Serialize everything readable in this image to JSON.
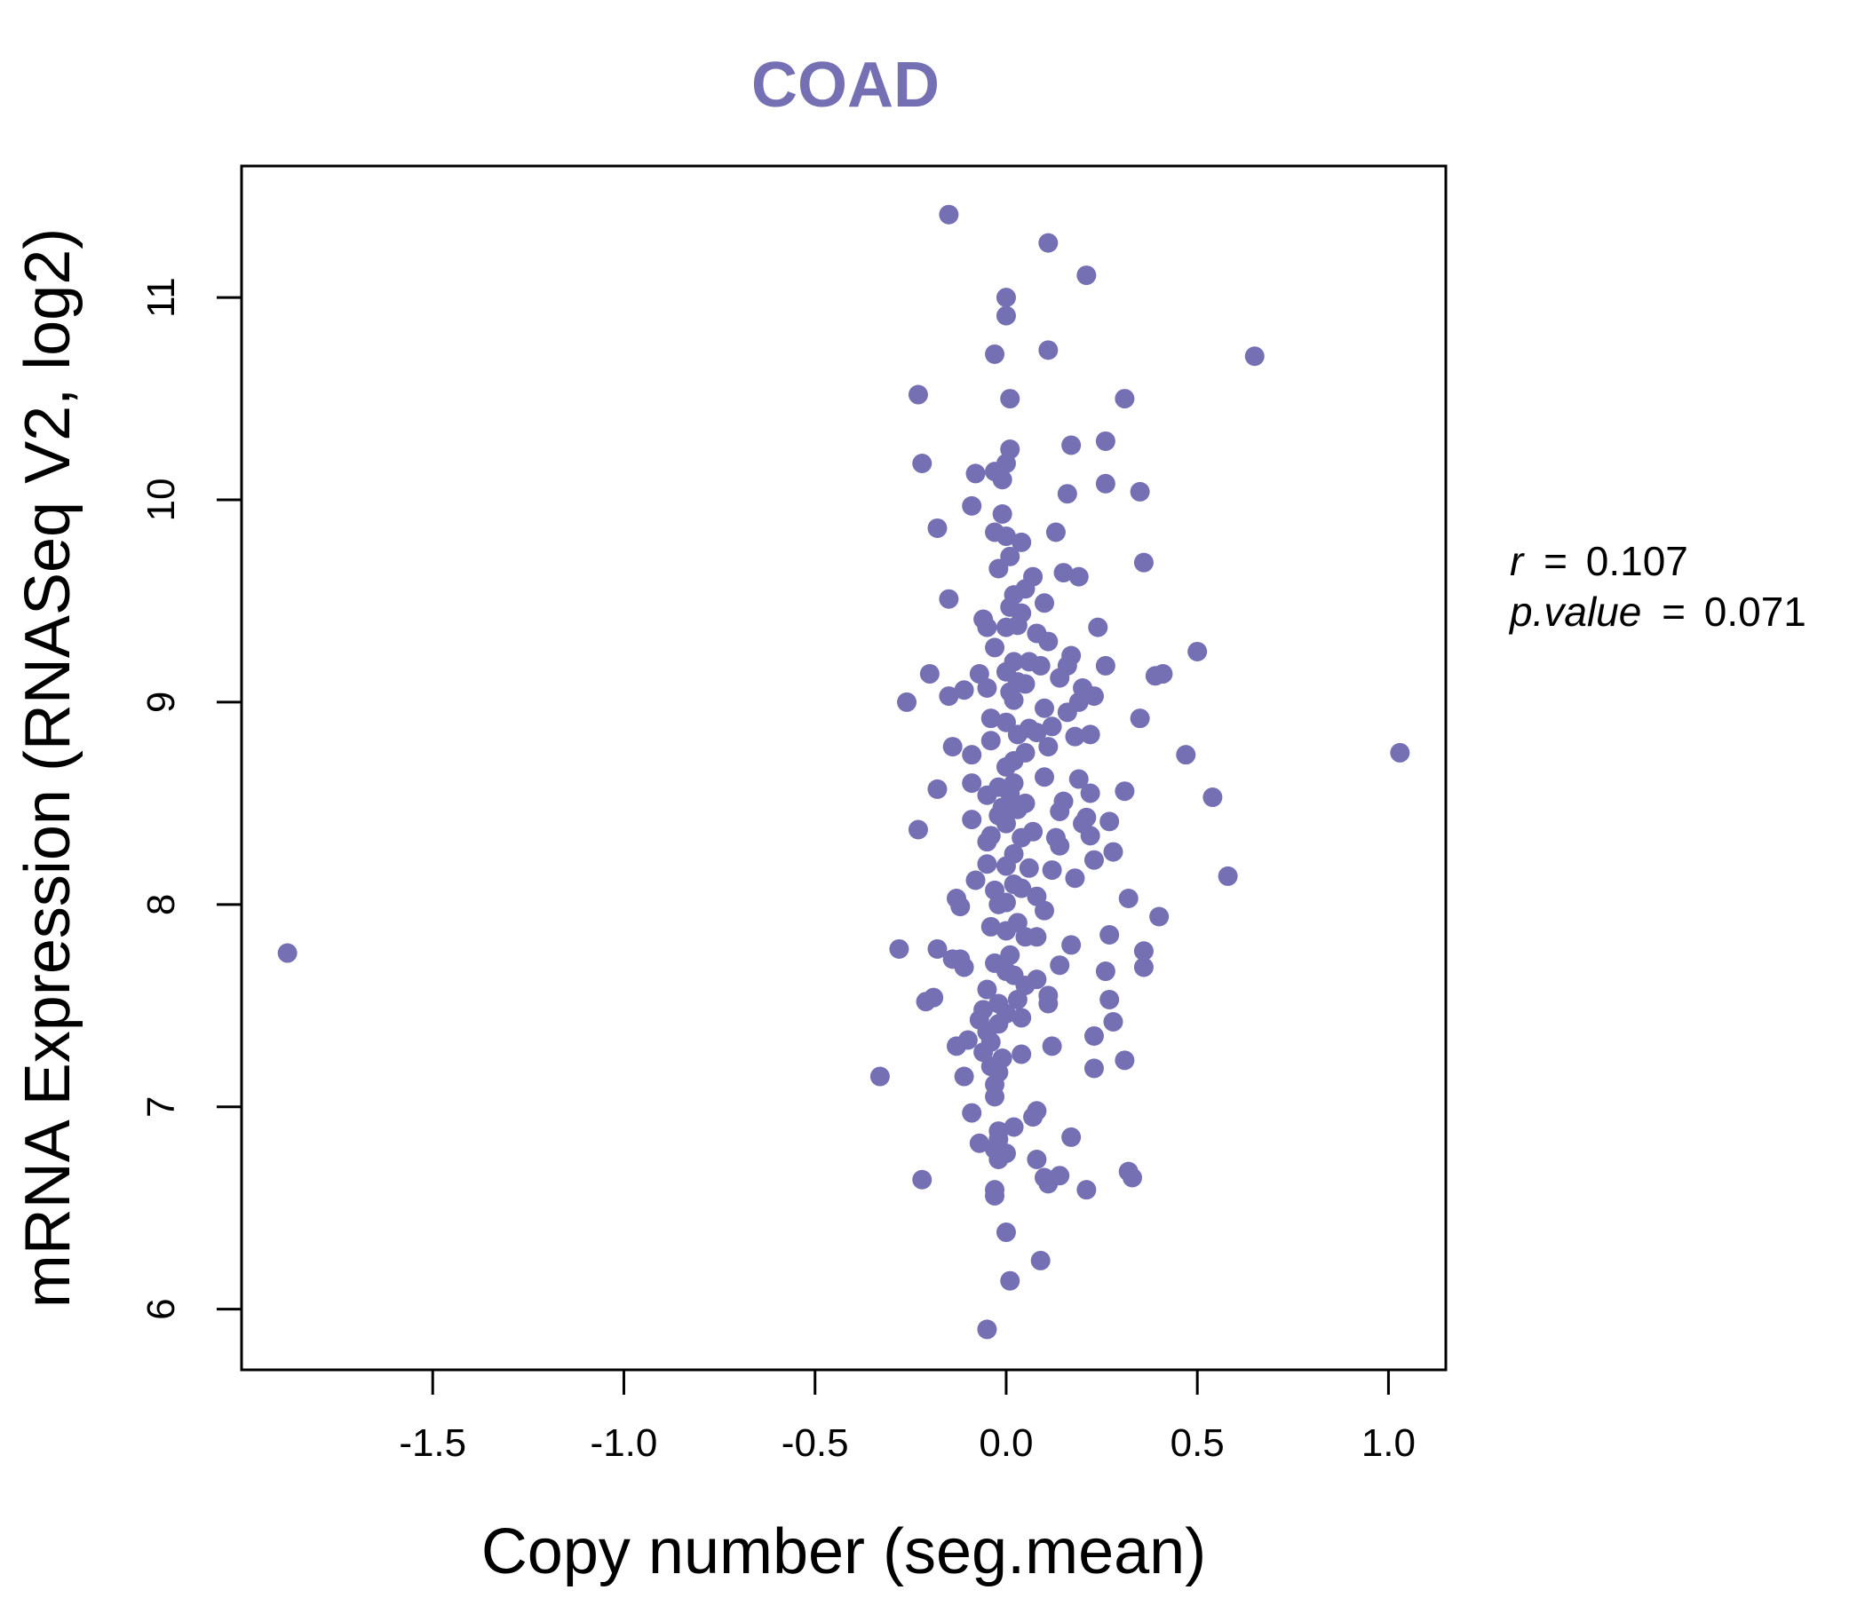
{
  "chart_data": {
    "type": "scatter",
    "title": "COAD",
    "xlabel": "Copy number (seg.mean)",
    "ylabel": "mRNA Expression (RNASeq V2, log2)",
    "xlim": [
      -2.0,
      1.15
    ],
    "ylim": [
      5.7,
      11.65
    ],
    "xticks": [
      -1.5,
      -1.0,
      -0.5,
      0.0,
      0.5,
      1.0
    ],
    "xtick_labels": [
      "-1.5",
      "-1.0",
      "-0.5",
      "0.0",
      "0.5",
      "1.0"
    ],
    "yticks": [
      6,
      7,
      8,
      9,
      10,
      11
    ],
    "ytick_labels": [
      "6",
      "7",
      "8",
      "9",
      "10",
      "11"
    ],
    "color": "#7570b3",
    "stats": {
      "r_label": "r",
      "r_value": "0.107",
      "p_label": "p.value",
      "p_value": "0.071",
      "equals": "="
    },
    "points": [
      [
        -1.88,
        7.76
      ],
      [
        -0.15,
        11.41
      ],
      [
        0.11,
        11.27
      ],
      [
        0.21,
        11.11
      ],
      [
        0.0,
        11.0
      ],
      [
        0.0,
        10.91
      ],
      [
        -0.03,
        10.72
      ],
      [
        0.11,
        10.74
      ],
      [
        0.65,
        10.71
      ],
      [
        -0.23,
        10.52
      ],
      [
        0.01,
        10.5
      ],
      [
        0.31,
        10.5
      ],
      [
        0.26,
        10.29
      ],
      [
        0.17,
        10.27
      ],
      [
        0.01,
        10.25
      ],
      [
        -0.22,
        10.18
      ],
      [
        0.0,
        10.18
      ],
      [
        -0.08,
        10.13
      ],
      [
        -0.03,
        10.14
      ],
      [
        -0.01,
        10.1
      ],
      [
        0.26,
        10.08
      ],
      [
        0.35,
        10.04
      ],
      [
        0.16,
        10.03
      ],
      [
        -0.09,
        9.97
      ],
      [
        -0.01,
        9.93
      ],
      [
        -0.18,
        9.86
      ],
      [
        -0.03,
        9.84
      ],
      [
        0.13,
        9.84
      ],
      [
        0.0,
        9.82
      ],
      [
        0.04,
        9.79
      ],
      [
        0.01,
        9.72
      ],
      [
        -0.02,
        9.66
      ],
      [
        0.36,
        9.69
      ],
      [
        0.15,
        9.64
      ],
      [
        0.19,
        9.62
      ],
      [
        0.07,
        9.62
      ],
      [
        0.05,
        9.56
      ],
      [
        0.02,
        9.53
      ],
      [
        -0.15,
        9.51
      ],
      [
        0.1,
        9.49
      ],
      [
        0.01,
        9.47
      ],
      [
        0.04,
        9.44
      ],
      [
        -0.06,
        9.41
      ],
      [
        0.03,
        9.38
      ],
      [
        0.0,
        9.37
      ],
      [
        -0.05,
        9.37
      ],
      [
        0.24,
        9.37
      ],
      [
        0.08,
        9.34
      ],
      [
        0.11,
        9.3
      ],
      [
        -0.03,
        9.27
      ],
      [
        0.5,
        9.25
      ],
      [
        0.17,
        9.23
      ],
      [
        0.02,
        9.2
      ],
      [
        0.06,
        9.2
      ],
      [
        0.09,
        9.18
      ],
      [
        0.26,
        9.18
      ],
      [
        0.16,
        9.18
      ],
      [
        -0.2,
        9.14
      ],
      [
        -0.07,
        9.14
      ],
      [
        0.0,
        9.15
      ],
      [
        0.41,
        9.14
      ],
      [
        0.39,
        9.13
      ],
      [
        0.14,
        9.12
      ],
      [
        0.03,
        9.1
      ],
      [
        0.05,
        9.09
      ],
      [
        -0.05,
        9.07
      ],
      [
        0.2,
        9.07
      ],
      [
        -0.11,
        9.06
      ],
      [
        0.01,
        9.05
      ],
      [
        -0.15,
        9.03
      ],
      [
        0.23,
        9.03
      ],
      [
        0.02,
        9.01
      ],
      [
        0.19,
        9.0
      ],
      [
        -0.26,
        9.0
      ],
      [
        0.1,
        8.97
      ],
      [
        0.16,
        8.95
      ],
      [
        0.35,
        8.92
      ],
      [
        -0.04,
        8.92
      ],
      [
        0.0,
        8.9
      ],
      [
        0.12,
        8.88
      ],
      [
        0.06,
        8.87
      ],
      [
        0.08,
        8.85
      ],
      [
        0.03,
        8.84
      ],
      [
        0.22,
        8.84
      ],
      [
        0.18,
        8.83
      ],
      [
        -0.04,
        8.81
      ],
      [
        0.11,
        8.78
      ],
      [
        -0.14,
        8.78
      ],
      [
        -0.09,
        8.74
      ],
      [
        0.47,
        8.74
      ],
      [
        0.05,
        8.75
      ],
      [
        1.03,
        8.75
      ],
      [
        0.02,
        8.71
      ],
      [
        0.0,
        8.68
      ],
      [
        0.1,
        8.63
      ],
      [
        0.19,
        8.62
      ],
      [
        0.02,
        8.6
      ],
      [
        -0.09,
        8.6
      ],
      [
        -0.02,
        8.58
      ],
      [
        -0.18,
        8.57
      ],
      [
        0.31,
        8.56
      ],
      [
        0.22,
        8.55
      ],
      [
        0.01,
        8.55
      ],
      [
        -0.05,
        8.54
      ],
      [
        0.54,
        8.53
      ],
      [
        0.15,
        8.51
      ],
      [
        0.05,
        8.5
      ],
      [
        -0.01,
        8.48
      ],
      [
        0.03,
        8.47
      ],
      [
        0.14,
        8.46
      ],
      [
        -0.02,
        8.44
      ],
      [
        0.21,
        8.43
      ],
      [
        0.2,
        8.4
      ],
      [
        0.27,
        8.41
      ],
      [
        -0.09,
        8.42
      ],
      [
        0.0,
        8.4
      ],
      [
        0.07,
        8.36
      ],
      [
        -0.23,
        8.37
      ],
      [
        -0.04,
        8.34
      ],
      [
        0.22,
        8.34
      ],
      [
        0.04,
        8.33
      ],
      [
        0.13,
        8.33
      ],
      [
        -0.05,
        8.31
      ],
      [
        0.14,
        8.29
      ],
      [
        0.28,
        8.26
      ],
      [
        0.02,
        8.25
      ],
      [
        0.23,
        8.22
      ],
      [
        -0.05,
        8.2
      ],
      [
        0.0,
        8.19
      ],
      [
        0.06,
        8.18
      ],
      [
        0.12,
        8.17
      ],
      [
        0.58,
        8.14
      ],
      [
        0.18,
        8.13
      ],
      [
        -0.08,
        8.12
      ],
      [
        0.02,
        8.1
      ],
      [
        0.04,
        8.08
      ],
      [
        -0.03,
        8.07
      ],
      [
        0.08,
        8.04
      ],
      [
        -0.13,
        8.03
      ],
      [
        0.32,
        8.03
      ],
      [
        0.0,
        8.01
      ],
      [
        -0.02,
        8.0
      ],
      [
        -0.12,
        7.99
      ],
      [
        0.1,
        7.97
      ],
      [
        0.4,
        7.94
      ],
      [
        0.03,
        7.91
      ],
      [
        -0.04,
        7.89
      ],
      [
        0.0,
        7.87
      ],
      [
        0.05,
        7.84
      ],
      [
        0.08,
        7.84
      ],
      [
        0.27,
        7.85
      ],
      [
        0.17,
        7.8
      ],
      [
        -0.28,
        7.78
      ],
      [
        -0.18,
        7.78
      ],
      [
        0.36,
        7.77
      ],
      [
        0.01,
        7.75
      ],
      [
        -0.14,
        7.73
      ],
      [
        -0.12,
        7.73
      ],
      [
        -0.03,
        7.71
      ],
      [
        0.14,
        7.7
      ],
      [
        -0.11,
        7.69
      ],
      [
        0.36,
        7.69
      ],
      [
        0.0,
        7.67
      ],
      [
        0.26,
        7.67
      ],
      [
        0.02,
        7.65
      ],
      [
        0.08,
        7.63
      ],
      [
        0.05,
        7.6
      ],
      [
        -0.05,
        7.58
      ],
      [
        0.11,
        7.55
      ],
      [
        -0.19,
        7.54
      ],
      [
        0.27,
        7.53
      ],
      [
        0.03,
        7.53
      ],
      [
        -0.02,
        7.51
      ],
      [
        0.11,
        7.51
      ],
      [
        -0.21,
        7.52
      ],
      [
        -0.06,
        7.48
      ],
      [
        0.0,
        7.46
      ],
      [
        0.04,
        7.44
      ],
      [
        -0.07,
        7.43
      ],
      [
        0.28,
        7.42
      ],
      [
        -0.02,
        7.41
      ],
      [
        -0.05,
        7.37
      ],
      [
        0.23,
        7.35
      ],
      [
        -0.1,
        7.33
      ],
      [
        -0.04,
        7.32
      ],
      [
        -0.13,
        7.3
      ],
      [
        0.12,
        7.3
      ],
      [
        -0.06,
        7.27
      ],
      [
        0.04,
        7.26
      ],
      [
        -0.01,
        7.24
      ],
      [
        0.31,
        7.23
      ],
      [
        -0.04,
        7.2
      ],
      [
        0.23,
        7.19
      ],
      [
        -0.02,
        7.17
      ],
      [
        -0.11,
        7.15
      ],
      [
        -0.33,
        7.15
      ],
      [
        -0.03,
        7.11
      ],
      [
        -0.03,
        7.05
      ],
      [
        0.08,
        6.98
      ],
      [
        -0.09,
        6.97
      ],
      [
        0.07,
        6.95
      ],
      [
        0.02,
        6.9
      ],
      [
        -0.02,
        6.88
      ],
      [
        0.17,
        6.85
      ],
      [
        -0.02,
        6.84
      ],
      [
        -0.07,
        6.82
      ],
      [
        -0.03,
        6.79
      ],
      [
        0.0,
        6.77
      ],
      [
        -0.02,
        6.74
      ],
      [
        0.08,
        6.74
      ],
      [
        0.32,
        6.68
      ],
      [
        0.14,
        6.66
      ],
      [
        0.1,
        6.65
      ],
      [
        0.33,
        6.65
      ],
      [
        -0.22,
        6.64
      ],
      [
        0.11,
        6.62
      ],
      [
        0.21,
        6.59
      ],
      [
        -0.03,
        6.59
      ],
      [
        -0.03,
        6.56
      ],
      [
        0.0,
        6.38
      ],
      [
        0.09,
        6.24
      ],
      [
        0.01,
        6.14
      ],
      [
        -0.05,
        5.9
      ]
    ]
  }
}
